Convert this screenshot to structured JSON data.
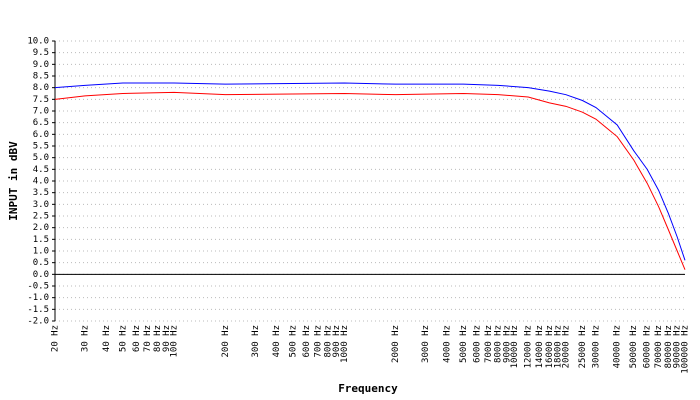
{
  "chart_data": {
    "type": "line",
    "xlabel": "Frequency",
    "ylabel": "INPUT in dBV",
    "xscale": "log",
    "grid": true,
    "xlim": [
      20,
      100000
    ],
    "ylim": [
      -2,
      10
    ],
    "x": [
      20,
      30,
      50,
      100,
      200,
      1000,
      2000,
      5000,
      8000,
      12000,
      16000,
      20000,
      25000,
      30000,
      40000,
      50000,
      60000,
      70000,
      80000,
      90000,
      100000
    ],
    "series": [
      {
        "color": "#0000ff",
        "values": [
          8.0,
          8.1,
          8.2,
          8.2,
          8.15,
          8.2,
          8.15,
          8.15,
          8.1,
          8.0,
          7.85,
          7.7,
          7.45,
          7.15,
          6.4,
          5.3,
          4.5,
          3.6,
          2.6,
          1.6,
          0.6
        ]
      },
      {
        "color": "#ff0000",
        "values": [
          7.5,
          7.65,
          7.75,
          7.8,
          7.7,
          7.75,
          7.7,
          7.75,
          7.7,
          7.6,
          7.35,
          7.2,
          6.95,
          6.65,
          5.9,
          4.9,
          3.9,
          2.9,
          1.9,
          1.0,
          0.2
        ]
      }
    ],
    "yticks": [
      {
        "value": 10,
        "label": "10.0"
      },
      9.5,
      {
        "value": 9,
        "label": "9.0"
      },
      8.5,
      {
        "value": 8,
        "label": "8.0"
      },
      7.5,
      {
        "value": 7,
        "label": "7.0"
      },
      6.5,
      {
        "value": 6,
        "label": "6.0"
      },
      5.5,
      {
        "value": 5,
        "label": "5.0"
      },
      4.5,
      {
        "value": 4,
        "label": "4.0"
      },
      3.5,
      {
        "value": 3,
        "label": "3.0"
      },
      2.5,
      {
        "value": 2,
        "label": "2.0"
      },
      1.5,
      {
        "value": 1,
        "label": "1.0"
      },
      0.5,
      {
        "value": 0,
        "label": "0.0"
      },
      -0.5,
      {
        "value": -1,
        "label": "-1.0"
      },
      -1.5,
      {
        "value": -2,
        "label": "-2.0"
      }
    ],
    "xticks": [
      {
        "value": 20,
        "label": "20 Hz"
      },
      {
        "value": 30,
        "label": "30 Hz"
      },
      {
        "value": 40,
        "label": "40 Hz"
      },
      {
        "value": 50,
        "label": "50 Hz"
      },
      {
        "value": 60,
        "label": "60 Hz"
      },
      {
        "value": 70,
        "label": "70 Hz"
      },
      {
        "value": 80,
        "label": "80 Hz"
      },
      {
        "value": 90,
        "label": "90 Hz"
      },
      {
        "value": 100,
        "label": "100 Hz"
      },
      {
        "value": 200,
        "label": "200 Hz"
      },
      {
        "value": 300,
        "label": "300 Hz"
      },
      {
        "value": 400,
        "label": "400 Hz"
      },
      {
        "value": 500,
        "label": "500 Hz"
      },
      {
        "value": 600,
        "label": "600 Hz"
      },
      {
        "value": 700,
        "label": "700 Hz"
      },
      {
        "value": 800,
        "label": "800 Hz"
      },
      {
        "value": 900,
        "label": "900 Hz"
      },
      {
        "value": 1000,
        "label": "1000 Hz"
      },
      {
        "value": 2000,
        "label": "2000 Hz"
      },
      {
        "value": 3000,
        "label": "3000 Hz"
      },
      {
        "value": 4000,
        "label": "4000 Hz"
      },
      {
        "value": 5000,
        "label": "5000 Hz"
      },
      {
        "value": 6000,
        "label": "6000 Hz"
      },
      {
        "value": 7000,
        "label": "7000 Hz"
      },
      {
        "value": 8000,
        "label": "8000 Hz"
      },
      {
        "value": 9000,
        "label": "9000 Hz"
      },
      {
        "value": 10000,
        "label": "10000 Hz"
      },
      {
        "value": 12000,
        "label": "12000 Hz"
      },
      {
        "value": 14000,
        "label": "14000 Hz"
      },
      {
        "value": 16000,
        "label": "16000 Hz"
      },
      {
        "value": 18000,
        "label": "18000 Hz"
      },
      {
        "value": 20000,
        "label": "20000 Hz"
      },
      {
        "value": 25000,
        "label": "25000 Hz"
      },
      {
        "value": 30000,
        "label": "30000 Hz"
      },
      {
        "value": 40000,
        "label": "40000 Hz"
      },
      {
        "value": 50000,
        "label": "50000 Hz"
      },
      {
        "value": 60000,
        "label": "60000 Hz"
      },
      {
        "value": 70000,
        "label": "70000 Hz"
      },
      {
        "value": 80000,
        "label": "80000 Hz"
      },
      {
        "value": 90000,
        "label": "90000 Hz"
      },
      {
        "value": 100000,
        "label": "100000 Hz"
      }
    ]
  }
}
